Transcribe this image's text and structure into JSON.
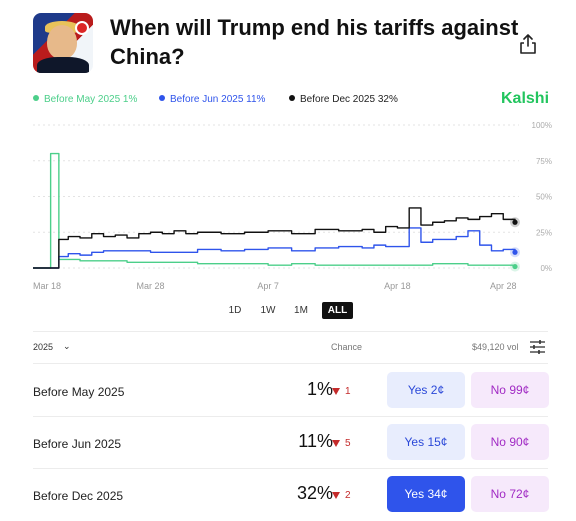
{
  "market": {
    "title": "When will Trump end his tariffs against China?",
    "brand": "Kalshi"
  },
  "legend": [
    {
      "label": "Before May 2025 1%",
      "color": "#4ccf8a"
    },
    {
      "label": "Before Jun 2025 11%",
      "color": "#2f54eb"
    },
    {
      "label": "Before Dec 2025 32%",
      "color": "#111111"
    }
  ],
  "chart_data": {
    "type": "line",
    "x_tick_labels": [
      "Mar 18",
      "Mar 28",
      "Apr 7",
      "Apr 18",
      "Apr 28"
    ],
    "y_tick_labels": [
      "100%",
      "75%",
      "50%",
      "25%",
      "0%"
    ],
    "ylim": [
      0,
      100
    ],
    "grid": true,
    "series": [
      {
        "name": "Before May 2025",
        "color": "#4ccf8a",
        "x": [
          0,
          1.4,
          1.5,
          2.1,
          2.2,
          3,
          4,
          6,
          8,
          10,
          12,
          14,
          16,
          18,
          20,
          22,
          24,
          26,
          28,
          30,
          31,
          32,
          33,
          34,
          35,
          36,
          37,
          38,
          39,
          40,
          41
        ],
        "values": [
          0,
          0,
          80,
          80,
          6,
          6,
          5,
          5,
          4,
          4,
          4,
          3,
          3,
          3,
          2,
          3,
          2,
          2,
          2,
          2,
          2,
          2,
          2,
          3,
          3,
          3,
          2,
          2,
          2,
          2,
          1
        ]
      },
      {
        "name": "Before Jun 2025",
        "color": "#2f54eb",
        "x": [
          0,
          1.4,
          2.2,
          3,
          4,
          5,
          6,
          8,
          10,
          12,
          14,
          16,
          18,
          20,
          22,
          24,
          26,
          28,
          29,
          30,
          31,
          32,
          33,
          34,
          35,
          36,
          37,
          38,
          39,
          40,
          41
        ],
        "values": [
          0,
          0,
          8,
          10,
          9,
          11,
          12,
          12,
          11,
          11,
          13,
          12,
          13,
          14,
          12,
          14,
          15,
          14,
          16,
          15,
          15,
          28,
          18,
          20,
          20,
          22,
          26,
          16,
          12,
          13,
          11
        ]
      },
      {
        "name": "Before Dec 2025",
        "color": "#111111",
        "x": [
          0,
          1.4,
          2.2,
          3,
          4,
          5,
          6,
          7,
          8,
          9,
          10,
          11,
          12,
          13,
          14,
          16,
          18,
          20,
          22,
          24,
          26,
          28,
          29,
          30,
          31,
          32,
          33,
          34,
          35,
          36,
          37,
          38,
          39,
          40,
          41
        ],
        "values": [
          0,
          0,
          20,
          22,
          21,
          24,
          22,
          23,
          21,
          24,
          25,
          24,
          26,
          24,
          25,
          24,
          25,
          26,
          24,
          27,
          26,
          27,
          25,
          29,
          28,
          42,
          30,
          32,
          33,
          35,
          34,
          36,
          38,
          34,
          32
        ]
      }
    ]
  },
  "ranges": [
    {
      "label": "1D"
    },
    {
      "label": "1W"
    },
    {
      "label": "1M"
    },
    {
      "label": "ALL"
    }
  ],
  "table": {
    "year": "2025",
    "chance_header": "Chance",
    "volume": "$49,120 vol",
    "rows": [
      {
        "label": "Before May 2025",
        "pct": "1%",
        "delta": "1",
        "yes": "Yes 2¢",
        "no": "No 99¢"
      },
      {
        "label": "Before Jun 2025",
        "pct": "11%",
        "delta": "5",
        "yes": "Yes 15¢",
        "no": "No 90¢"
      },
      {
        "label": "Before Dec 2025",
        "pct": "32%",
        "delta": "2",
        "yes": "Yes 34¢",
        "no": "No 72¢"
      }
    ]
  }
}
